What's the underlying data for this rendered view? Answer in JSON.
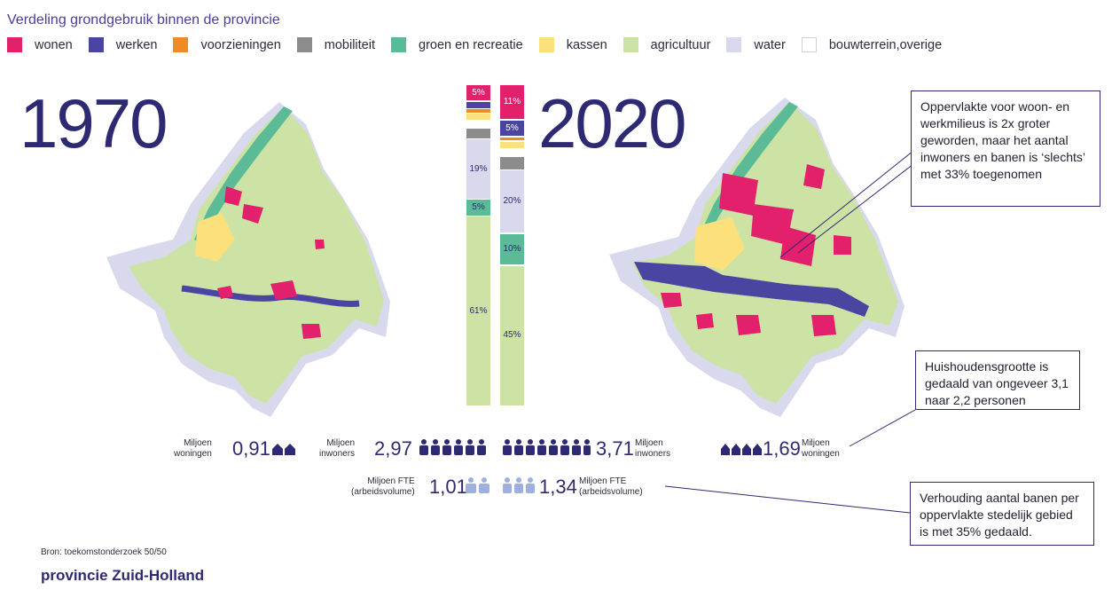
{
  "title": "Verdeling grondgebruik binnen de provincie",
  "legend": [
    {
      "label": "wonen",
      "color": "#e3206b"
    },
    {
      "label": "werken",
      "color": "#4a45a0"
    },
    {
      "label": "voorzieningen",
      "color": "#f08a24"
    },
    {
      "label": "mobiliteit",
      "color": "#8c8c8c"
    },
    {
      "label": "groen en recreatie",
      "color": "#5bbb96"
    },
    {
      "label": "kassen",
      "color": "#fce07c"
    },
    {
      "label": "agricultuur",
      "color": "#cde3a6"
    },
    {
      "label": "water",
      "color": "#d9d9ee"
    },
    {
      "label": "bouwterrein,overige",
      "color": "#ffffff"
    }
  ],
  "chart_data": {
    "type": "bar",
    "stacked": true,
    "unit": "%",
    "categories": [
      "1970",
      "2020"
    ],
    "series": [
      {
        "name": "wonen",
        "values": [
          5,
          11
        ]
      },
      {
        "name": "werken",
        "values": [
          2,
          5
        ]
      },
      {
        "name": "voorzieningen",
        "values": [
          1,
          1
        ]
      },
      {
        "name": "mobiliteit",
        "values": [
          3,
          4
        ]
      },
      {
        "name": "groen en recreatie",
        "values": [
          5,
          10
        ]
      },
      {
        "name": "kassen",
        "values": [
          2,
          2
        ]
      },
      {
        "name": "agricultuur",
        "values": [
          61,
          45
        ]
      },
      {
        "name": "water",
        "values": [
          19,
          20
        ]
      },
      {
        "name": "bouwterrein,overige",
        "values": [
          2,
          2
        ]
      }
    ],
    "data_labels": [
      [
        "5%",
        "",
        "",
        "",
        "5%",
        "",
        "61%",
        "19%",
        ""
      ],
      [
        "11%",
        "5%",
        "",
        "",
        "10%",
        "",
        "45%",
        "20%",
        ""
      ]
    ]
  },
  "years": {
    "left": "1970",
    "right": "2020"
  },
  "stats": {
    "won1970": {
      "label": [
        "Miljoen",
        "woningen"
      ],
      "value": "0,91"
    },
    "inw1970": {
      "label": [
        "Miljoen",
        "inwoners"
      ],
      "value": "2,97"
    },
    "fte1970": {
      "label": [
        "Miljoen FTE",
        "(arbeidsvolume)"
      ],
      "value": "1,01"
    },
    "inw2020": {
      "label": [
        "Miljoen",
        "inwoners"
      ],
      "value": "3,71"
    },
    "fte2020": {
      "label": [
        "Miljoen FTE",
        "(arbeidsvolume)"
      ],
      "value": "1,34"
    },
    "won2020": {
      "label": [
        "Miljoen",
        "woningen"
      ],
      "value": "1,69"
    }
  },
  "callouts": {
    "c1": "Oppervlakte voor woon- en werkmilieus is 2x groter geworden, maar het aantal inwoners en banen is ‘slechts’ met 33% toegenomen",
    "c2": "Huishoudensgrootte is gedaald van ongeveer 3,1 naar 2,2 personen",
    "c3": "Verhouding aantal banen per oppervlakte stedelijk gebied is met 35% gedaald."
  },
  "source": "Bron: toekomstonderzoek 50/50",
  "brand": "provincie Zuid-Holland"
}
